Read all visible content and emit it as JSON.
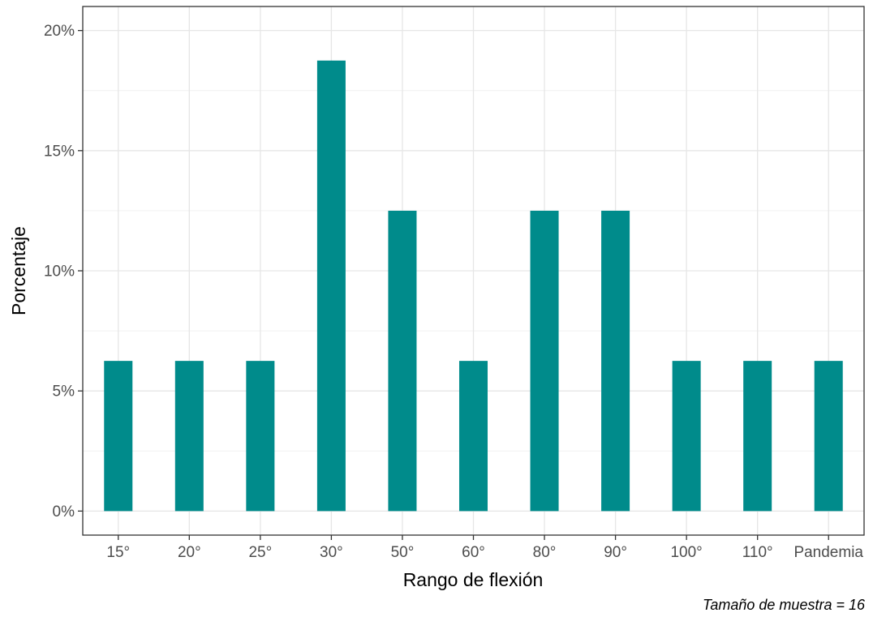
{
  "chart_data": {
    "type": "bar",
    "categories": [
      "15°",
      "20°",
      "25°",
      "30°",
      "50°",
      "60°",
      "80°",
      "90°",
      "100°",
      "110°",
      "Pandemia"
    ],
    "values": [
      6.25,
      6.25,
      6.25,
      18.75,
      12.5,
      6.25,
      12.5,
      12.5,
      6.25,
      6.25,
      6.25
    ],
    "value_unit": "%",
    "xlabel": "Rango de flexión",
    "ylabel": "Porcentaje",
    "ylim": [
      -1,
      21
    ],
    "yticks": [
      0,
      5,
      10,
      15,
      20
    ],
    "ytick_labels": [
      "0%",
      "5%",
      "10%",
      "15%",
      "20%"
    ],
    "caption": "Tamaño de muestra = 16",
    "grid": true,
    "bar_color": "#008B8B"
  }
}
